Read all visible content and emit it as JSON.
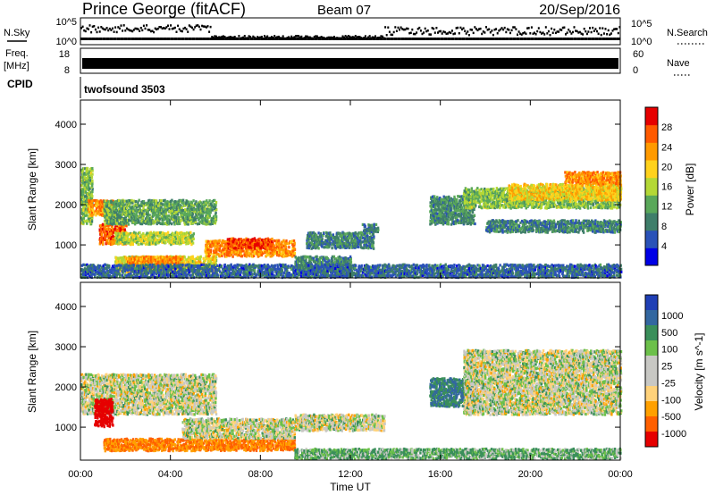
{
  "header": {
    "title": "Prince George (fitACF)",
    "beam": "Beam 07",
    "date": "20/Sep/2016"
  },
  "top_panels": {
    "nsky_label": "N.Sky",
    "nsky_ticks": [
      "10^5",
      "10^0"
    ],
    "nsearch_label": "N.Search",
    "nsearch_ticks": [
      "10^5",
      "10^0"
    ],
    "freq_label_1": "Freq.",
    "freq_label_2": "[MHz]",
    "freq_ticks": [
      "18",
      "8"
    ],
    "nave_label": "Nave",
    "nave_ticks": [
      "60",
      "0"
    ],
    "cpid_label": "CPID",
    "cpid_value": "twofsound 3503"
  },
  "colors": {
    "power": [
      "#0000e6",
      "#2a52b8",
      "#3f7e6a",
      "#5aa85a",
      "#b4d836",
      "#ffd21c",
      "#ff9a00",
      "#ff5a00",
      "#e60000"
    ],
    "velocity_pos": [
      "#1f3fb5",
      "#3367a0",
      "#3a8f5a",
      "#6cc04a"
    ],
    "velocity_neutral": "#c8c8c4",
    "velocity_neg": [
      "#ffd27a",
      "#ffa000",
      "#ff6000",
      "#e60000"
    ]
  },
  "chart_data": [
    {
      "type": "heatmap",
      "name": "power",
      "ylabel": "Slant Range [km]",
      "xlabel": "Time UT",
      "x_ticks": [
        "00:00",
        "04:00",
        "08:00",
        "12:00",
        "16:00",
        "20:00",
        "00:00"
      ],
      "y_ticks": [
        "1000",
        "2000",
        "3000",
        "4000"
      ],
      "xlim_hours": [
        0,
        24
      ],
      "ylim_km": [
        180,
        4600
      ],
      "colorbar_label": "Power [dB]",
      "colorbar_ticks": [
        "4",
        "8",
        "12",
        "16",
        "20",
        "24",
        "28"
      ],
      "colorbar_range": [
        0,
        32
      ],
      "bands": [
        {
          "t": [
            0.0,
            0.5
          ],
          "r": [
            1500,
            2900
          ],
          "v": 14
        },
        {
          "t": [
            0.3,
            1.5
          ],
          "r": [
            1700,
            2100
          ],
          "v": 24
        },
        {
          "t": [
            0.8,
            2.0
          ],
          "r": [
            1000,
            1500
          ],
          "v": 26
        },
        {
          "t": [
            1.0,
            6.0
          ],
          "r": [
            1500,
            2100
          ],
          "v": 12
        },
        {
          "t": [
            1.5,
            5.0
          ],
          "r": [
            1000,
            1300
          ],
          "v": 16
        },
        {
          "t": [
            1.5,
            6.0
          ],
          "r": [
            300,
            700
          ],
          "v": 18
        },
        {
          "t": [
            2.0,
            4.5
          ],
          "r": [
            400,
            700
          ],
          "v": 24
        },
        {
          "t": [
            5.5,
            9.5
          ],
          "r": [
            700,
            1100
          ],
          "v": 24
        },
        {
          "t": [
            6.5,
            8.5
          ],
          "r": [
            900,
            1150
          ],
          "v": 28
        },
        {
          "t": [
            9.5,
            12.0
          ],
          "r": [
            300,
            700
          ],
          "v": 10
        },
        {
          "t": [
            10.0,
            13.0
          ],
          "r": [
            900,
            1300
          ],
          "v": 9
        },
        {
          "t": [
            12.5,
            13.2
          ],
          "r": [
            1300,
            1500
          ],
          "v": 8
        },
        {
          "t": [
            15.5,
            17.5
          ],
          "r": [
            1500,
            2200
          ],
          "v": 10
        },
        {
          "t": [
            17.0,
            24.0
          ],
          "r": [
            1900,
            2400
          ],
          "v": 14
        },
        {
          "t": [
            19.0,
            24.0
          ],
          "r": [
            2100,
            2500
          ],
          "v": 20
        },
        {
          "t": [
            21.5,
            24.0
          ],
          "r": [
            2500,
            2800
          ],
          "v": 24
        },
        {
          "t": [
            18.0,
            24.0
          ],
          "r": [
            1300,
            1600
          ],
          "v": 9
        },
        {
          "t": [
            0.0,
            24.0
          ],
          "r": [
            180,
            500
          ],
          "v": 7
        }
      ]
    },
    {
      "type": "heatmap",
      "name": "velocity",
      "ylabel": "Slant Range [km]",
      "xlabel": "Time UT",
      "x_ticks": [
        "00:00",
        "04:00",
        "08:00",
        "12:00",
        "16:00",
        "20:00",
        "00:00"
      ],
      "y_ticks": [
        "1000",
        "2000",
        "3000",
        "4000"
      ],
      "xlim_hours": [
        0,
        24
      ],
      "ylim_km": [
        180,
        4600
      ],
      "colorbar_label": "Velocity [m s^-1]",
      "colorbar_ticks": [
        "1000",
        "500",
        "100",
        "25",
        "-25",
        "-100",
        "-500",
        "-1000"
      ],
      "bands": [
        {
          "t": [
            0.0,
            6.0
          ],
          "r": [
            1300,
            2300
          ],
          "v": 0
        },
        {
          "t": [
            0.6,
            1.4
          ],
          "r": [
            1000,
            1700
          ],
          "v": -900
        },
        {
          "t": [
            1.0,
            9.5
          ],
          "r": [
            400,
            700
          ],
          "v": -300
        },
        {
          "t": [
            4.5,
            9.5
          ],
          "r": [
            700,
            1200
          ],
          "v": 0
        },
        {
          "t": [
            9.5,
            13.5
          ],
          "r": [
            900,
            1300
          ],
          "v": 0
        },
        {
          "t": [
            9.5,
            24.0
          ],
          "r": [
            200,
            450
          ],
          "v": 60
        },
        {
          "t": [
            15.5,
            17.5
          ],
          "r": [
            1500,
            2200
          ],
          "v": 300
        },
        {
          "t": [
            17.0,
            24.0
          ],
          "r": [
            1300,
            2900
          ],
          "v": 0
        }
      ]
    }
  ]
}
